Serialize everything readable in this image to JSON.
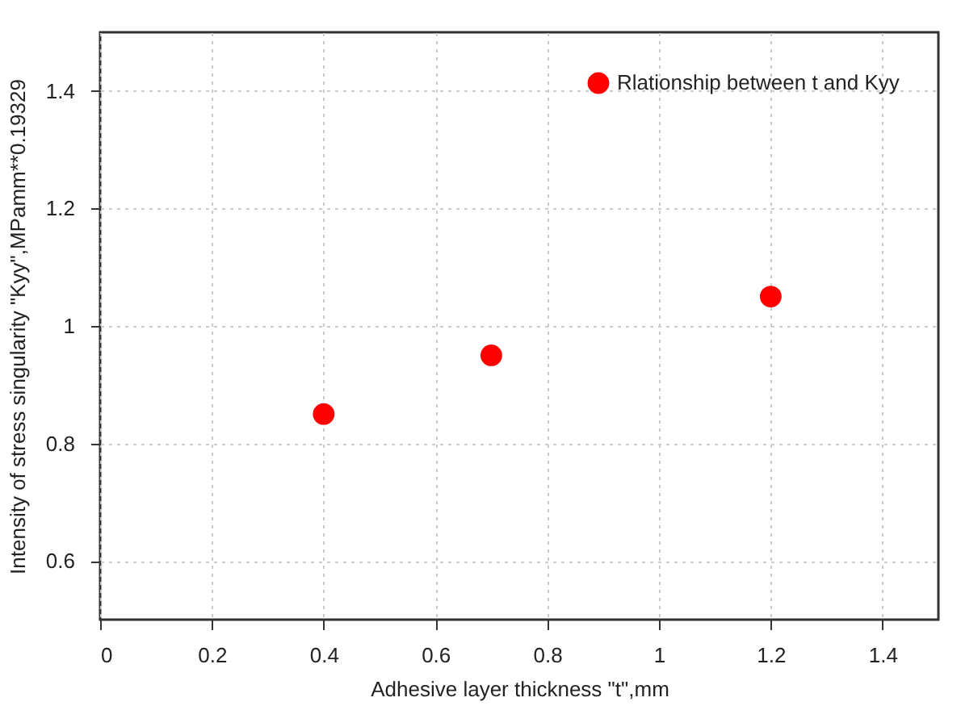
{
  "chart_data": {
    "type": "scatter",
    "xlabel": "Adhesive layer thickness \"t\",mm",
    "ylabel": "Intensity of stress singularity \"Kyy\",MPamm**0.19329",
    "x": [
      0.4,
      0.7,
      1.2
    ],
    "series": [
      {
        "name": "Rlationship between t and Kyy",
        "color": "#ff0000",
        "values": [
          0.85,
          0.95,
          1.05
        ]
      }
    ],
    "xlim": [
      0,
      1.5
    ],
    "xticks": [
      0,
      0.2,
      0.4,
      0.6,
      0.8,
      1,
      1.2,
      1.4
    ],
    "ylim": [
      0.5,
      1.5
    ],
    "yticks": [
      0.6,
      0.8,
      1,
      1.2,
      1.4
    ],
    "grid": true,
    "legend": "top right",
    "marker": "circle"
  }
}
